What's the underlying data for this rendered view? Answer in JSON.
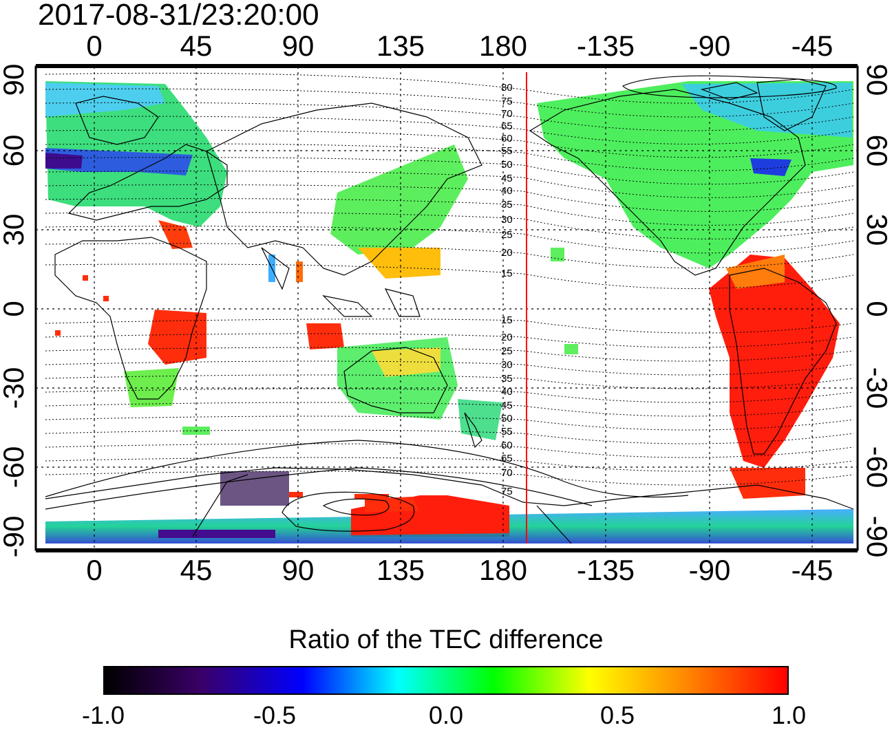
{
  "title": "2017-08-31/23:20:00",
  "lon_ticks": [
    "0",
    "45",
    "90",
    "135",
    "180",
    "-135",
    "-90",
    "-45"
  ],
  "lat_ticks": [
    "90",
    "60",
    "30",
    "0",
    "-30",
    "-60",
    "-90"
  ],
  "contour_labels": [
    "80",
    "75",
    "70",
    "65",
    "60",
    "55",
    "50",
    "45",
    "40",
    "35",
    "30",
    "25",
    "20",
    "15",
    "15",
    "20",
    "25",
    "30",
    "35",
    "40",
    "45",
    "50",
    "55",
    "60",
    "65",
    "70",
    "75"
  ],
  "colorbar": {
    "title": "Ratio of the TEC difference",
    "ticks": [
      "-1.0",
      "-0.5",
      "0.0",
      "0.5",
      "1.0"
    ],
    "range": [
      -1.0,
      1.0
    ],
    "colors": [
      "#000000",
      "#3a0066",
      "#0000ff",
      "#00ffff",
      "#00ff00",
      "#ffff00",
      "#ff8000",
      "#ff0000"
    ]
  },
  "map": {
    "projection": "equirectangular",
    "lon_range": [
      -20,
      340
    ],
    "lat_range": [
      -90,
      90
    ],
    "terminator_lon": 190,
    "terminator_color": "#ff0000"
  }
}
